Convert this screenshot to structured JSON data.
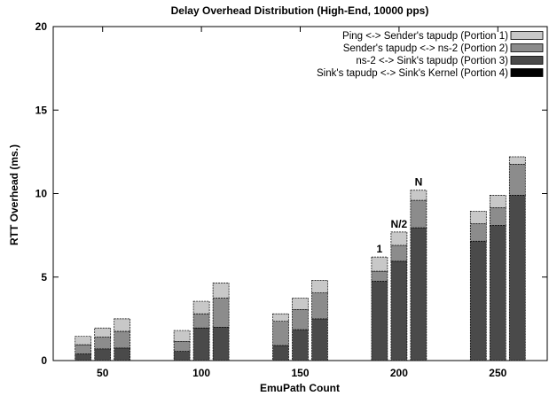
{
  "chart_data": {
    "type": "bar",
    "stacked": true,
    "title": "Delay Overhead Distribution (High-End, 10000 pps)",
    "xlabel": "EmuPath Count",
    "ylabel": "RTT Overhead (ms.)",
    "ylim": [
      0,
      20
    ],
    "yticks": [
      "0",
      "5",
      "10",
      "15",
      "20"
    ],
    "categories": [
      "50",
      "100",
      "150",
      "200",
      "250"
    ],
    "bars_per_group": 3,
    "legend_position": "top-right",
    "series": [
      {
        "name": "Ping <-> Sender's tapudp (Portion 1)",
        "color": "#c8c8c8",
        "values": [
          [
            0.5,
            0.55,
            0.75
          ],
          [
            0.65,
            0.75,
            0.9
          ],
          [
            0.45,
            0.7,
            0.75
          ],
          [
            0.85,
            0.8,
            0.6
          ],
          [
            0.75,
            0.75,
            0.45
          ]
        ]
      },
      {
        "name": "Sender's tapudp <-> ns-2 (Portion 2)",
        "color": "#8c8c8c",
        "values": [
          [
            0.55,
            0.7,
            1.0
          ],
          [
            0.6,
            0.85,
            1.75
          ],
          [
            1.45,
            1.2,
            1.55
          ],
          [
            0.6,
            0.95,
            1.65
          ],
          [
            1.05,
            1.05,
            1.85
          ]
        ]
      },
      {
        "name": "ns-2 <-> Sink's tapudp (Portion 3)",
        "color": "#4a4a4a",
        "values": [
          [
            0.4,
            0.7,
            0.75
          ],
          [
            0.55,
            1.95,
            2.0
          ],
          [
            0.9,
            1.85,
            2.5
          ],
          [
            4.75,
            5.95,
            7.95
          ],
          [
            7.15,
            8.1,
            9.9
          ]
        ]
      },
      {
        "name": "Sink's tapudp <-> Sink's Kernel (Portion 4)",
        "color": "#000000",
        "values": [
          [
            0,
            0,
            0
          ],
          [
            0,
            0,
            0
          ],
          [
            0,
            0,
            0
          ],
          [
            0,
            0,
            0
          ],
          [
            0,
            0,
            0
          ]
        ]
      }
    ],
    "annotations": [
      {
        "category": "200",
        "bar": 0,
        "text": "1"
      },
      {
        "category": "200",
        "bar": 1,
        "text": "N/2"
      },
      {
        "category": "200",
        "bar": 2,
        "text": "N"
      }
    ]
  }
}
